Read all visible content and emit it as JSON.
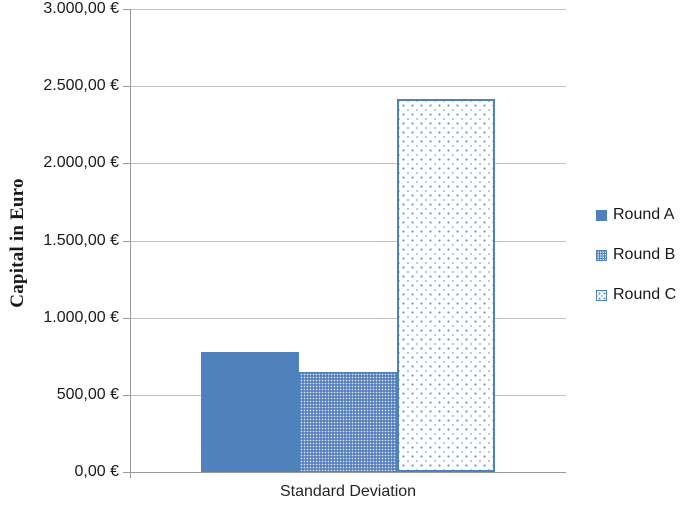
{
  "chart_data": {
    "type": "bar",
    "title": "",
    "categories": [
      "Standard Deviation"
    ],
    "series": [
      {
        "name": "Round A",
        "values": [
          780
        ],
        "fill": "solid",
        "color": "#4f81bd"
      },
      {
        "name": "Round B",
        "values": [
          650
        ],
        "fill": "dense",
        "color": "#4f81bd"
      },
      {
        "name": "Round C",
        "values": [
          2420
        ],
        "fill": "sparse",
        "color": "#4f81bd"
      }
    ],
    "xlabel": "Standard Deviation",
    "ylabel": "Capital in Euro",
    "ylim": [
      0,
      3000
    ],
    "ytick_step": 500,
    "ytick_labels": [
      "0,00 €",
      "500,00 €",
      "1.000,00 €",
      "1.500,00 €",
      "2.000,00 €",
      "2.500,00 €",
      "3.000,00 €"
    ],
    "grid": true,
    "legend_position": "right"
  },
  "colors": {
    "bar_blue": "#4f81bd",
    "gridline": "#c3c3c3",
    "axis": "#9a9a9a",
    "text": "#1a1a1a"
  },
  "legend": {
    "items": [
      {
        "label": "Round A"
      },
      {
        "label": "Round B"
      },
      {
        "label": "Round C"
      }
    ]
  }
}
